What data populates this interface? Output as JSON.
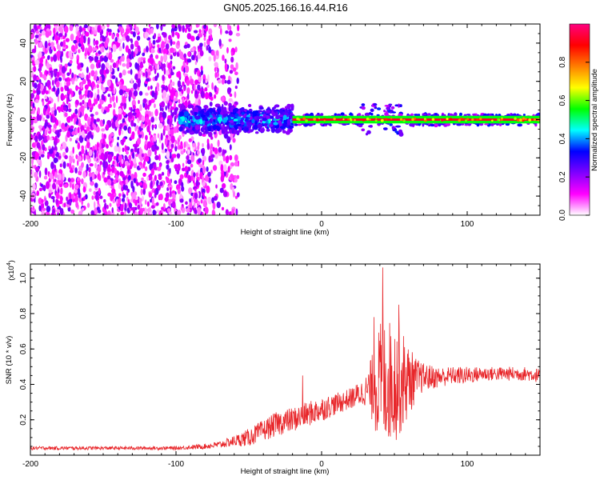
{
  "page_title": "GN05.2025.166.16.44.R16",
  "chart_data": [
    {
      "type": "heatmap",
      "title": "GN05.2025.166.16.44.R16",
      "xlabel": "Height of straight line (km)",
      "ylabel": "Frequency (Hz)",
      "xlim": [
        -200,
        150
      ],
      "ylim": [
        -50,
        50
      ],
      "x_ticks": [
        -200,
        -100,
        0,
        100
      ],
      "y_ticks": [
        -40,
        -20,
        0,
        20,
        40
      ],
      "colorbar": {
        "label": "Normalized spectral amplitude",
        "range": [
          0,
          1
        ],
        "ticks": [
          "0.0",
          "0.2",
          "0.4",
          "0.6",
          "0.8"
        ],
        "colors": [
          "#ffffff",
          "#ff00ff",
          "#7f00ff",
          "#0000ff",
          "#00ffff",
          "#00ff00",
          "#ffff00",
          "#ff7f00",
          "#ff0000",
          "#ff0080"
        ]
      },
      "regions": [
        {
          "name": "broadband noise",
          "x": [
            -200,
            -57
          ],
          "freq": [
            -50,
            50
          ],
          "amplitude": [
            0.05,
            0.25
          ]
        },
        {
          "name": "transition",
          "x": [
            -97,
            -20
          ],
          "freq": [
            -8,
            8
          ],
          "amplitude": [
            0.2,
            0.5
          ]
        },
        {
          "name": "narrow line",
          "x": [
            -20,
            150
          ],
          "freq": [
            -2,
            2
          ],
          "amplitude": [
            0.5,
            1.0
          ]
        }
      ],
      "grid": false
    },
    {
      "type": "line",
      "xlabel": "Height of straight line (km)",
      "ylabel": "SNR (10 * v/v)",
      "yscale_label": "(x10",
      "yscale_exponent": "4",
      "xlim": [
        -200,
        150
      ],
      "ylim": [
        0,
        1.08
      ],
      "x_ticks": [
        -200,
        -100,
        0,
        100
      ],
      "y_ticks": [
        "0.2",
        "0.4",
        "0.6",
        "0.8",
        "1.0"
      ],
      "color": "#e8262a",
      "series": [
        {
          "x": [
            -200,
            -180,
            -160,
            -140,
            -120,
            -100,
            -90,
            -80,
            -70,
            -60,
            -50,
            -40,
            -30,
            -20,
            -10,
            0,
            10,
            20,
            30,
            35,
            40,
            45,
            50,
            55,
            60,
            65,
            70,
            80,
            90,
            100,
            110,
            120,
            130,
            140,
            150
          ],
          "values": [
            0.04,
            0.04,
            0.04,
            0.04,
            0.04,
            0.04,
            0.045,
            0.05,
            0.06,
            0.08,
            0.1,
            0.14,
            0.18,
            0.2,
            0.23,
            0.26,
            0.29,
            0.32,
            0.36,
            0.38,
            0.4,
            0.42,
            0.42,
            0.42,
            0.42,
            0.43,
            0.44,
            0.44,
            0.45,
            0.45,
            0.46,
            0.46,
            0.46,
            0.46,
            0.45
          ],
          "noise": [
            0.01,
            0.01,
            0.01,
            0.01,
            0.01,
            0.01,
            0.012,
            0.015,
            0.02,
            0.03,
            0.05,
            0.06,
            0.07,
            0.07,
            0.07,
            0.07,
            0.06,
            0.06,
            0.08,
            0.2,
            0.35,
            0.35,
            0.35,
            0.3,
            0.2,
            0.12,
            0.08,
            0.06,
            0.05,
            0.05,
            0.04,
            0.04,
            0.04,
            0.04,
            0.04
          ]
        }
      ],
      "peaks": [
        {
          "x": 42,
          "y": 1.06
        },
        {
          "x": -13,
          "y": 0.45
        },
        {
          "x": 36,
          "y": 0.78
        },
        {
          "x": 53,
          "y": 0.85
        }
      ],
      "grid": false
    }
  ]
}
